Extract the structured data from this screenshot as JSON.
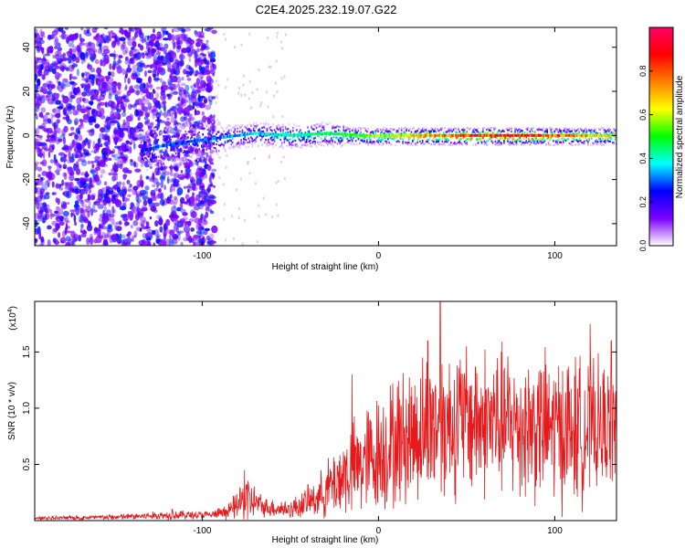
{
  "title": "C2E4.2025.232.19.07.G22",
  "chart_data": [
    {
      "type": "heatmap",
      "panel": "top",
      "title": "C2E4.2025.232.19.07.G22",
      "xlabel": "Height of straight line (km)",
      "ylabel": "Frequency (Hz)",
      "xlim": [
        -195,
        135
      ],
      "ylim": [
        -50,
        49
      ],
      "xticks": [
        -100,
        0,
        100
      ],
      "yticks": [
        -40,
        -20,
        0,
        20,
        40
      ],
      "colorbar": {
        "label": "Normalized spectral amplitude",
        "range": [
          0,
          1
        ],
        "ticks": [
          "0.0",
          "0.2",
          "0.4",
          "0.6",
          "0.8"
        ],
        "tick_values": [
          0.0,
          0.2,
          0.4,
          0.6,
          0.8
        ],
        "colors": [
          "#ffffff",
          "#7b00ff",
          "#0000ff",
          "#00ffff",
          "#00ff00",
          "#ffff00",
          "#ff8000",
          "#ff0000",
          "#ff0066"
        ]
      },
      "ridge": [
        {
          "x": -135,
          "f": -7,
          "amp": 0.25
        },
        {
          "x": -125,
          "f": -5,
          "amp": 0.35
        },
        {
          "x": -110,
          "f": -3,
          "amp": 0.3
        },
        {
          "x": -90,
          "f": -1,
          "amp": 0.35
        },
        {
          "x": -70,
          "f": 1,
          "amp": 0.4
        },
        {
          "x": -50,
          "f": 0,
          "amp": 0.45
        },
        {
          "x": -30,
          "f": 1,
          "amp": 0.5
        },
        {
          "x": -10,
          "f": 0,
          "amp": 0.6
        },
        {
          "x": 10,
          "f": 0,
          "amp": 0.7
        },
        {
          "x": 30,
          "f": 0,
          "amp": 0.8
        },
        {
          "x": 50,
          "f": 0,
          "amp": 0.9
        },
        {
          "x": 80,
          "f": 0,
          "amp": 1.0
        },
        {
          "x": 110,
          "f": 0,
          "amp": 0.8
        },
        {
          "x": 135,
          "f": 0,
          "amp": 0.7
        }
      ],
      "noise_region": {
        "x_from": -195,
        "x_to": -93,
        "level": 0.15
      }
    },
    {
      "type": "line",
      "panel": "bottom",
      "xlabel": "Height of straight line (km)",
      "ylabel": "SNR (10 * v/v)",
      "y_multiplier": "(x10",
      "y_multiplier_exp": "4",
      "y_multiplier_close": ")",
      "xlim": [
        -195,
        135
      ],
      "ylim": [
        0,
        1.95
      ],
      "xticks": [
        -100,
        0,
        100
      ],
      "yticks": [
        0.5,
        1.0,
        1.5
      ],
      "ytick_labels": [
        "0.5",
        "1.0",
        "1.5"
      ],
      "color": "#e41a1c",
      "envelope": [
        {
          "x": -195,
          "mean": 0.02,
          "spread": 0.02
        },
        {
          "x": -150,
          "mean": 0.03,
          "spread": 0.03
        },
        {
          "x": -115,
          "mean": 0.05,
          "spread": 0.05
        },
        {
          "x": -95,
          "mean": 0.05,
          "spread": 0.04
        },
        {
          "x": -85,
          "mean": 0.08,
          "spread": 0.08
        },
        {
          "x": -75,
          "mean": 0.2,
          "spread": 0.25
        },
        {
          "x": -65,
          "mean": 0.12,
          "spread": 0.1
        },
        {
          "x": -50,
          "mean": 0.1,
          "spread": 0.1
        },
        {
          "x": -35,
          "mean": 0.2,
          "spread": 0.2
        },
        {
          "x": -20,
          "mean": 0.4,
          "spread": 0.45
        },
        {
          "x": -5,
          "mean": 0.55,
          "spread": 0.6
        },
        {
          "x": 10,
          "mean": 0.7,
          "spread": 0.7
        },
        {
          "x": 30,
          "mean": 0.85,
          "spread": 0.8
        },
        {
          "x": 50,
          "mean": 0.9,
          "spread": 0.8
        },
        {
          "x": 80,
          "mean": 0.85,
          "spread": 0.8
        },
        {
          "x": 110,
          "mean": 0.8,
          "spread": 0.8
        },
        {
          "x": 135,
          "mean": 0.85,
          "spread": 0.6
        }
      ],
      "peaks": [
        {
          "x": -117,
          "y": 0.1
        },
        {
          "x": -76,
          "y": 0.45
        },
        {
          "x": -40,
          "y": 0.32
        },
        {
          "x": -15,
          "y": 1.3
        },
        {
          "x": 28,
          "y": 1.6
        },
        {
          "x": 35,
          "y": 1.95
        },
        {
          "x": 120,
          "y": 1.75
        },
        {
          "x": 132,
          "y": 1.6
        }
      ]
    }
  ]
}
